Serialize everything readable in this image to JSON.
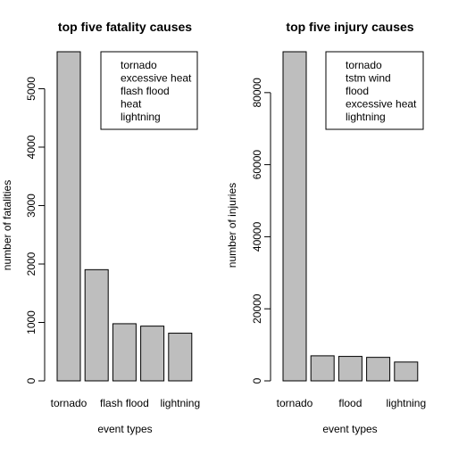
{
  "chart_data": [
    {
      "type": "bar",
      "title": "top five fatality causes",
      "xlabel": "event types",
      "ylabel": "number of fatalities",
      "categories": [
        "tornado",
        "excessive heat",
        "flash flood",
        "heat",
        "lightning"
      ],
      "category_tick_labels": [
        "tornado",
        "",
        "flash flood",
        "",
        "lightning"
      ],
      "values": [
        5633,
        1903,
        978,
        937,
        816
      ],
      "ylim": [
        0,
        5633
      ],
      "yticks": [
        0,
        1000,
        2000,
        3000,
        4000,
        5000
      ],
      "legend": {
        "placement": "top-right",
        "entries": [
          "tornado",
          "excessive heat",
          "flash flood",
          "heat",
          "lightning"
        ]
      },
      "bar_color": "#bebebe",
      "grid": false
    },
    {
      "type": "bar",
      "title": "top five injury causes",
      "xlabel": "event types",
      "ylabel": "number of injuries",
      "categories": [
        "tornado",
        "tstm wind",
        "flood",
        "excessive heat",
        "lightning"
      ],
      "category_tick_labels": [
        "tornado",
        "",
        "flood",
        "",
        "lightning"
      ],
      "values": [
        91346,
        6957,
        6789,
        6525,
        5230
      ],
      "ylim": [
        0,
        91346
      ],
      "yticks": [
        0,
        20000,
        40000,
        60000,
        80000
      ],
      "legend": {
        "placement": "top-right",
        "entries": [
          "tornado",
          "tstm wind",
          "flood",
          "excessive heat",
          "lightning"
        ]
      },
      "bar_color": "#bebebe",
      "grid": false
    }
  ]
}
